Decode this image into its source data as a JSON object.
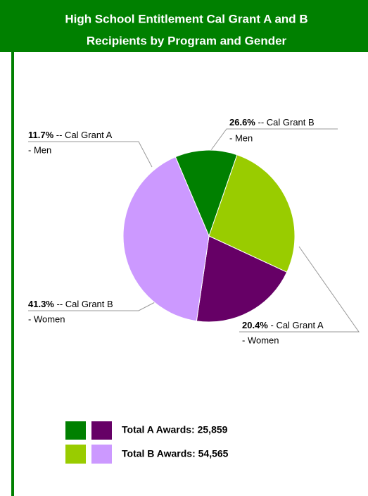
{
  "chart_data": {
    "type": "pie",
    "title_lines": [
      "High School Entitlement Cal Grant A and B",
      "Recipients by Program and Gender"
    ],
    "values": [
      11.7,
      26.6,
      20.4,
      41.3
    ],
    "value_labels": [
      "11.7%",
      "26.6%",
      "20.4%",
      "41.3%"
    ],
    "label_lines": [
      [
        "-- Cal Grant A",
        "- Men"
      ],
      [
        "-- Cal Grant B",
        "- Men"
      ],
      [
        "- Cal Grant A",
        "- Women"
      ],
      [
        "-- Cal Grant B",
        "- Women"
      ]
    ],
    "colors": [
      "#008000",
      "#99cc00",
      "#660066",
      "#cc99ff"
    ],
    "legend": [
      "Total A Awards: 25,859",
      "Total B Awards: 54,565"
    ]
  }
}
